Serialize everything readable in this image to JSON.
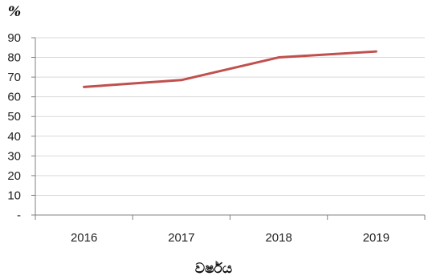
{
  "chart_data": {
    "type": "line",
    "title": "",
    "ylabel": "%",
    "xlabel": "වර්ෂය",
    "categories": [
      "2016",
      "2017",
      "2018",
      "2019"
    ],
    "series": [
      {
        "values": [
          65,
          68.5,
          80,
          83
        ],
        "color": "#c0504d"
      }
    ],
    "ylim": [
      0,
      90
    ],
    "yticks": [
      0,
      10,
      20,
      30,
      40,
      50,
      60,
      70,
      80,
      90
    ],
    "ytick_labels": [
      "-",
      "10",
      "20",
      "30",
      "40",
      "50",
      "60",
      "70",
      "80",
      "90"
    ],
    "grid": true,
    "grid_color": "#d9d9d9",
    "axis_color": "#808080",
    "legend": "none"
  }
}
